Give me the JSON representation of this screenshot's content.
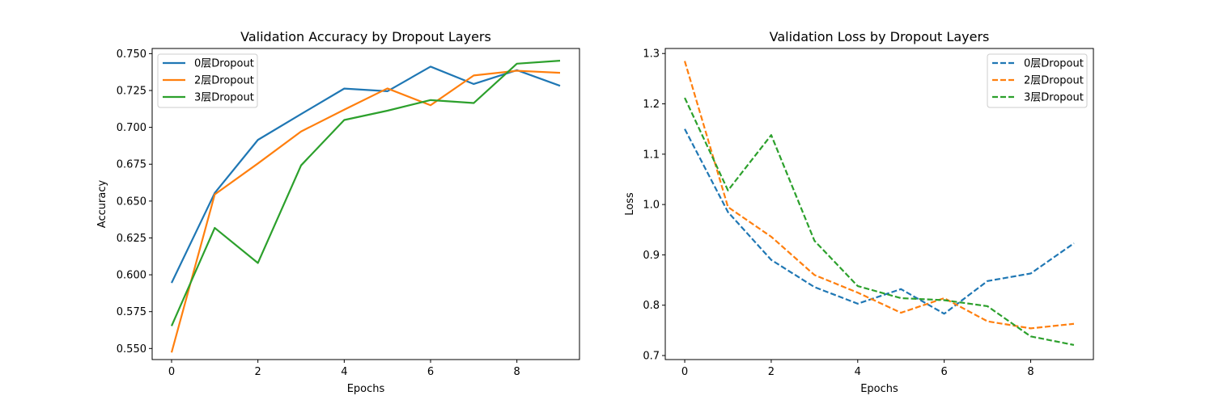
{
  "chart_data": [
    {
      "type": "line",
      "title": "Validation Accuracy by Dropout Layers",
      "xlabel": "Epochs",
      "ylabel": "Accuracy",
      "xlim": [
        -0.45,
        9.45
      ],
      "ylim": [
        0.5425,
        0.7535
      ],
      "xticks": [
        0,
        2,
        4,
        6,
        8
      ],
      "xtick_labels": [
        "0",
        "2",
        "4",
        "6",
        "8"
      ],
      "yticks": [
        0.55,
        0.575,
        0.6,
        0.625,
        0.65,
        0.675,
        0.7,
        0.725,
        0.75
      ],
      "ytick_labels": [
        "0.550",
        "0.575",
        "0.600",
        "0.625",
        "0.650",
        "0.675",
        "0.700",
        "0.725",
        "0.750"
      ],
      "grid": false,
      "legend_position": "top-left",
      "line_style": "solid",
      "x": [
        0,
        1,
        2,
        3,
        4,
        5,
        6,
        7,
        8,
        9
      ],
      "series": [
        {
          "name": "0层Dropout",
          "color": "#1f77b4",
          "values": [
            0.5945,
            0.6555,
            0.6915,
            0.709,
            0.7263,
            0.7245,
            0.7412,
            0.7294,
            0.7388,
            0.7282
          ]
        },
        {
          "name": "2层Dropout",
          "color": "#ff7f0e",
          "values": [
            0.5473,
            0.6545,
            0.6755,
            0.6972,
            0.712,
            0.7264,
            0.715,
            0.7352,
            0.7384,
            0.737
          ]
        },
        {
          "name": "3层Dropout",
          "color": "#2ca02c",
          "values": [
            0.5653,
            0.6318,
            0.608,
            0.6742,
            0.705,
            0.7113,
            0.7185,
            0.7165,
            0.7432,
            0.7452
          ]
        }
      ]
    },
    {
      "type": "line",
      "title": "Validation Loss by Dropout Layers",
      "xlabel": "Epochs",
      "ylabel": "Loss",
      "xlim": [
        -0.45,
        9.45
      ],
      "ylim": [
        0.692,
        1.31
      ],
      "xticks": [
        0,
        2,
        4,
        6,
        8
      ],
      "xtick_labels": [
        "0",
        "2",
        "4",
        "6",
        "8"
      ],
      "yticks": [
        0.7,
        0.8,
        0.9,
        1.0,
        1.1,
        1.2,
        1.3
      ],
      "ytick_labels": [
        "0.7",
        "0.8",
        "0.9",
        "1.0",
        "1.1",
        "1.2",
        "1.3"
      ],
      "grid": false,
      "legend_position": "top-right",
      "line_style": "dashed",
      "x": [
        0,
        1,
        2,
        3,
        4,
        5,
        6,
        7,
        8,
        9
      ],
      "series": [
        {
          "name": "0层Dropout",
          "color": "#1f77b4",
          "values": [
            1.15,
            0.985,
            0.89,
            0.836,
            0.803,
            0.832,
            0.783,
            0.848,
            0.863,
            0.923
          ]
        },
        {
          "name": "2层Dropout",
          "color": "#ff7f0e",
          "values": [
            1.285,
            0.995,
            0.936,
            0.86,
            0.825,
            0.785,
            0.814,
            0.768,
            0.754,
            0.763
          ]
        },
        {
          "name": "3层Dropout",
          "color": "#2ca02c",
          "values": [
            1.212,
            1.028,
            1.138,
            0.928,
            0.838,
            0.814,
            0.81,
            0.798,
            0.738,
            0.721
          ]
        }
      ]
    }
  ]
}
